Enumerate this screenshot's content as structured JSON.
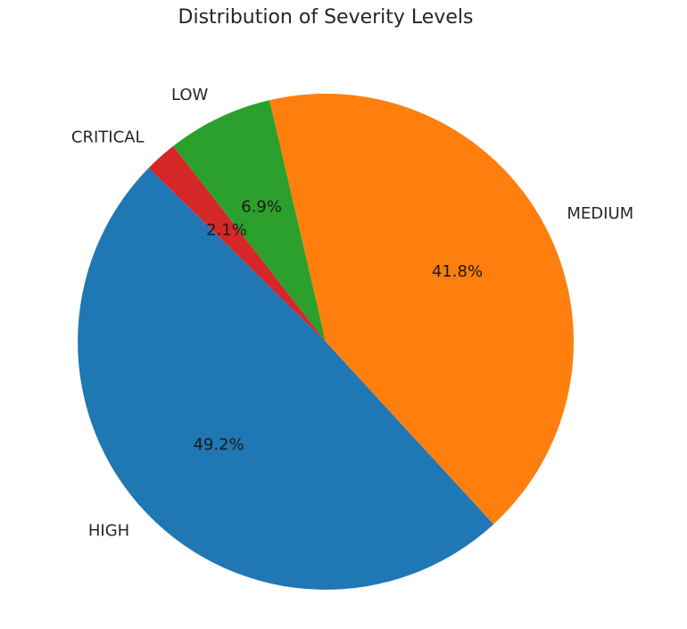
{
  "chart_data": {
    "type": "pie",
    "title": "Distribution of Severity Levels",
    "slices": [
      {
        "label": "HIGH",
        "value": 49.2,
        "pct_label": "49.2%",
        "color": "#1f77b4"
      },
      {
        "label": "MEDIUM",
        "value": 41.8,
        "pct_label": "41.8%",
        "color": "#ff7f0e"
      },
      {
        "label": "LOW",
        "value": 6.9,
        "pct_label": "6.9%",
        "color": "#2ca02c"
      },
      {
        "label": "CRITICAL",
        "value": 2.1,
        "pct_label": "2.1%",
        "color": "#d62728"
      }
    ]
  }
}
